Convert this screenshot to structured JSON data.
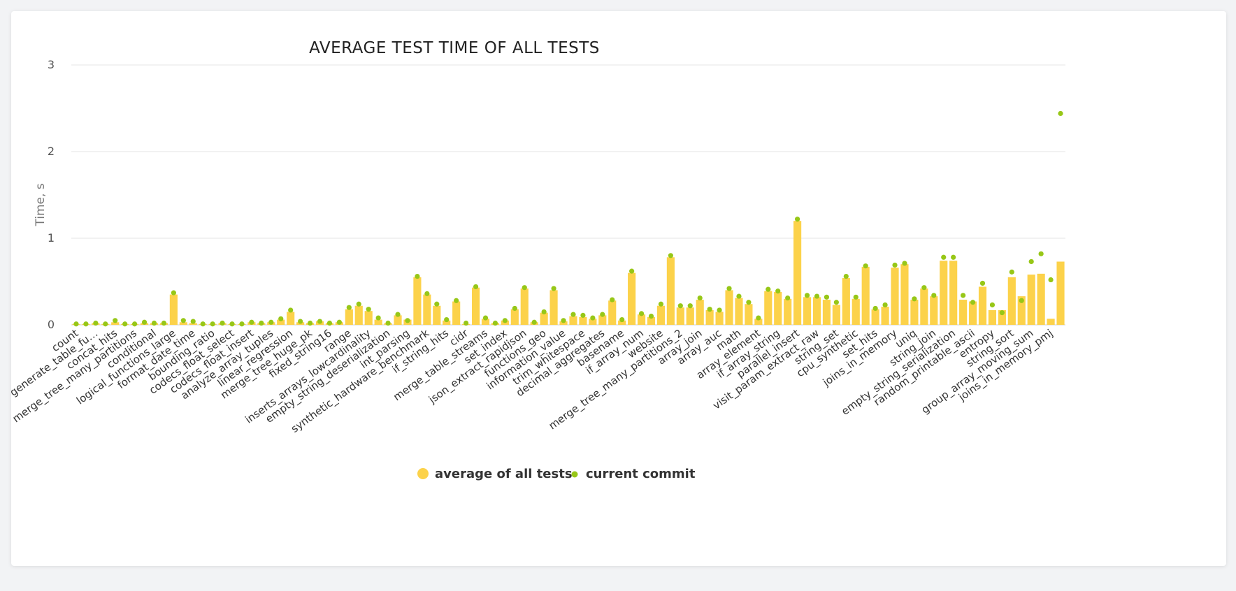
{
  "chart_data": {
    "type": "bar",
    "title": "AVERAGE TEST TIME OF ALL TESTS",
    "ylabel": "Time, s",
    "xlabel": "",
    "ylim": [
      0,
      3
    ],
    "yticks": [
      "0",
      "1",
      "2",
      "3"
    ],
    "grid": true,
    "legend_position": "bottom-center",
    "colors": {
      "average": "#fcd24a",
      "current": "#97c717"
    },
    "series": [
      {
        "name": "average of all tests",
        "kind": "bar",
        "values": [
          0.01,
          0.01,
          0.02,
          0.01,
          0.03,
          0.01,
          0.01,
          0.02,
          0.02,
          0.02,
          0.35,
          0.03,
          0.02,
          0.01,
          0.01,
          0.02,
          0.01,
          0.01,
          0.03,
          0.02,
          0.03,
          0.06,
          0.15,
          0.03,
          0.02,
          0.04,
          0.02,
          0.03,
          0.18,
          0.22,
          0.16,
          0.06,
          0.02,
          0.11,
          0.06,
          0.55,
          0.35,
          0.22,
          0.05,
          0.27,
          0.01,
          0.43,
          0.07,
          0.02,
          0.05,
          0.18,
          0.42,
          0.03,
          0.14,
          0.4,
          0.04,
          0.1,
          0.09,
          0.07,
          0.11,
          0.28,
          0.05,
          0.6,
          0.12,
          0.09,
          0.22,
          0.78,
          0.2,
          0.2,
          0.29,
          0.17,
          0.15,
          0.4,
          0.31,
          0.24,
          0.07,
          0.39,
          0.38,
          0.3,
          1.2,
          0.32,
          0.32,
          0.29,
          0.23,
          0.54,
          0.3,
          0.67,
          0.18,
          0.21,
          0.66,
          0.7,
          0.29,
          0.42,
          0.33,
          0.74,
          0.74,
          0.29,
          0.27,
          0.44,
          0.17,
          0.17,
          0.55,
          0.33,
          0.58,
          0.59,
          0.07,
          0.73
        ]
      },
      {
        "name": "current commit",
        "kind": "point",
        "values": [
          0.01,
          0.01,
          0.02,
          0.01,
          0.05,
          0.01,
          0.01,
          0.03,
          0.02,
          0.02,
          0.37,
          0.05,
          0.04,
          0.01,
          0.01,
          0.02,
          0.01,
          0.01,
          0.03,
          0.02,
          0.03,
          0.07,
          0.17,
          0.04,
          0.02,
          0.04,
          0.02,
          0.03,
          0.2,
          0.24,
          0.18,
          0.08,
          0.02,
          0.12,
          0.05,
          0.56,
          0.36,
          0.24,
          0.06,
          0.28,
          0.02,
          0.44,
          0.08,
          0.02,
          0.05,
          0.19,
          0.43,
          0.03,
          0.15,
          0.42,
          0.05,
          0.12,
          0.11,
          0.08,
          0.12,
          0.29,
          0.06,
          0.62,
          0.13,
          0.1,
          0.24,
          0.8,
          0.22,
          0.22,
          0.31,
          0.18,
          0.17,
          0.42,
          0.33,
          0.26,
          0.08,
          0.41,
          0.39,
          0.31,
          1.22,
          0.34,
          0.33,
          0.32,
          0.26,
          0.56,
          0.32,
          0.68,
          0.19,
          0.23,
          0.69,
          0.71,
          0.3,
          0.43,
          0.34,
          0.78,
          0.78,
          0.34,
          0.26,
          0.48,
          0.23,
          0.14,
          0.61,
          0.28,
          0.73,
          0.82,
          0.52,
          2.44
        ]
      }
    ],
    "categories": [
      "count",
      "",
      "generate_table_fu…",
      "",
      "concat_hits",
      "",
      "merge_tree_many_partitions",
      "",
      "conditional",
      "",
      "logical_functions_large",
      "",
      "format_date_time",
      "",
      "bounding_ratio",
      "",
      "codecs_float_select",
      "",
      "codecs_float_insert",
      "",
      "analyze_array_tuples",
      "",
      "linear_regression",
      "",
      "merge_tree_huge_pk",
      "",
      "fixed_string16",
      "",
      "range",
      "",
      "inserts_arrays_lowcardinality",
      "",
      "empty_string_deserialization",
      "",
      "int_parsing",
      "",
      "synthetic_hardware_benchmark",
      "",
      "if_string_hits",
      "",
      "cidr",
      "",
      "merge_table_streams",
      "",
      "set_index",
      "",
      "json_extract_rapidjson",
      "",
      "functions_geo",
      "",
      "information_value",
      "",
      "trim_whitespace",
      "",
      "decimal_aggregates",
      "",
      "basename",
      "",
      "if_array_num",
      "",
      "website",
      "",
      "merge_tree_many_partitions_2",
      "",
      "array_join",
      "",
      "array_auc",
      "",
      "math",
      "",
      "array_element",
      "",
      "if_array_string",
      "",
      "parallel_insert",
      "",
      "visit_param_extract_raw",
      "",
      "string_set",
      "",
      "cpu_synthetic",
      "",
      "set_hits",
      "",
      "joins_in_memory",
      "",
      "uniq",
      "",
      "string_join",
      "",
      "empty_string_serialization",
      "",
      "random_printable_ascii",
      "",
      "entropy",
      "",
      "string_sort",
      "",
      "group_array_moving_sum",
      "",
      "joins_in_memory_pmj",
      ""
    ]
  }
}
